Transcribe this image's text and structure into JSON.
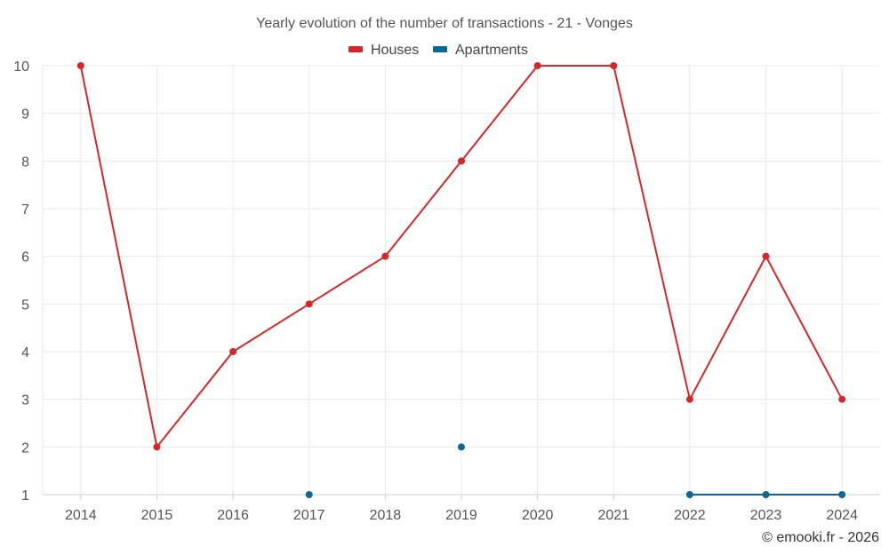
{
  "chart_data": {
    "type": "line",
    "title": "Yearly evolution of the number of transactions - 21 - Vonges",
    "categories": [
      "2014",
      "2015",
      "2016",
      "2017",
      "2018",
      "2019",
      "2020",
      "2021",
      "2022",
      "2023",
      "2024"
    ],
    "series": [
      {
        "name": "Houses",
        "color": "#d62728",
        "values": [
          10,
          2,
          4,
          5,
          6,
          8,
          10,
          10,
          3,
          6,
          3
        ]
      },
      {
        "name": "Apartments",
        "color": "#0a6796",
        "values": [
          null,
          null,
          null,
          1,
          null,
          2,
          null,
          null,
          1,
          1,
          1
        ]
      }
    ],
    "ylim": [
      1,
      10
    ],
    "yticks": [
      1,
      2,
      3,
      4,
      5,
      6,
      7,
      8,
      9,
      10
    ],
    "grid": true,
    "legend_position": "top-center",
    "credit": "© emooki.fr - 2026"
  }
}
